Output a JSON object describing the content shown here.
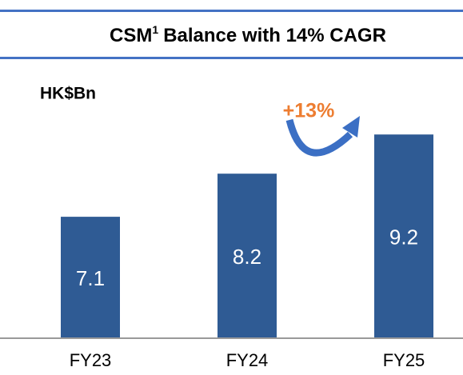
{
  "chart_data": {
    "type": "bar",
    "title": "CSM",
    "title_footnote": "1",
    "title_rest": "Balance with 14% CAGR",
    "unit_label": "HK$Bn",
    "annotation": "+13%",
    "categories": [
      "FY23",
      "FY24",
      "FY25"
    ],
    "values": [
      7.1,
      8.2,
      9.2
    ],
    "color": "#2f5b94",
    "ylim": [
      4,
      10
    ]
  }
}
